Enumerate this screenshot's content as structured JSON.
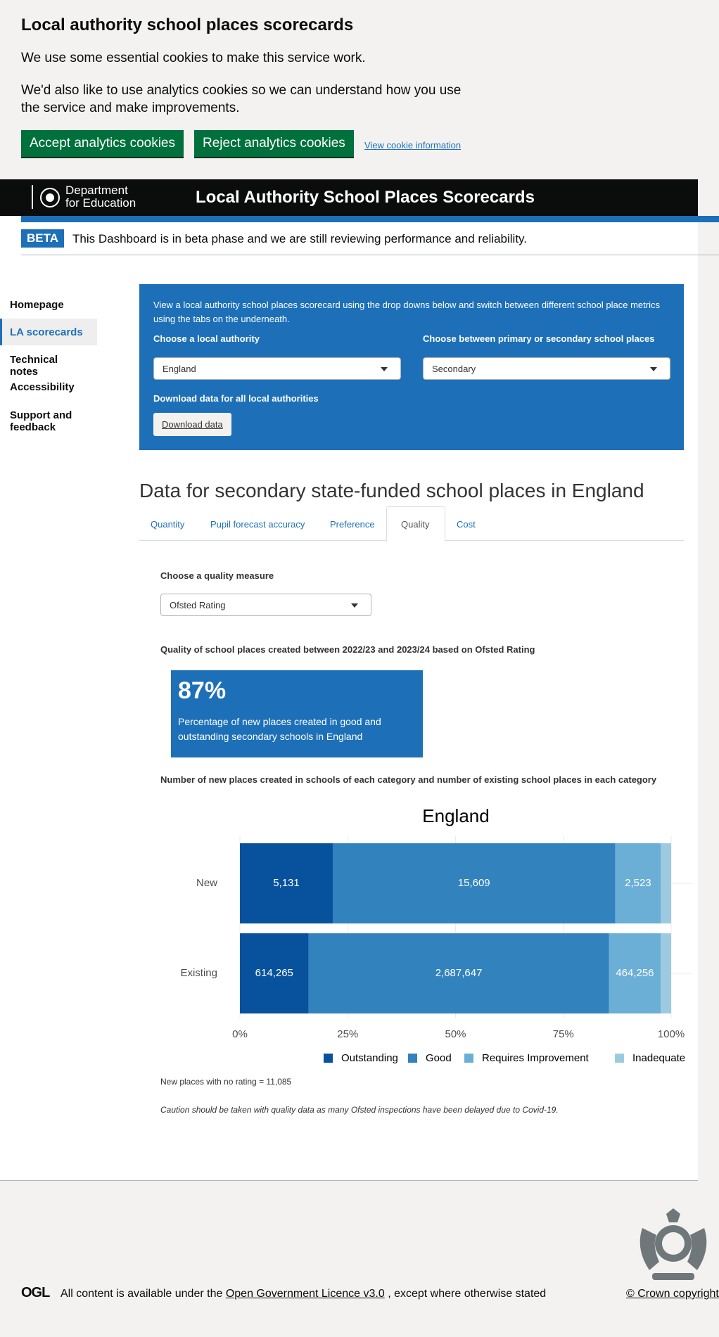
{
  "cookie_banner": {
    "title": "Local authority school places scorecards",
    "text1": "We use some essential cookies to make this service work.",
    "text2": "We'd also like to use analytics cookies so we can understand how you use the service and make improvements.",
    "accept": "Accept analytics cookies",
    "reject": "Reject analytics cookies",
    "link": "View cookie information"
  },
  "header": {
    "org_line1": "Department",
    "org_line2": "for Education",
    "title": "Local Authority School Places Scorecards"
  },
  "beta": {
    "tag": "BETA",
    "text": "This Dashboard is in beta phase and we are still reviewing performance and reliability."
  },
  "nav": [
    "Homepage",
    "LA scorecards",
    "Technical notes",
    "Accessibility",
    "Support and feedback"
  ],
  "panel": {
    "intro": "View a local authority school places scorecard using the drop downs below and switch between different school place metrics using the tabs on the underneath.",
    "la_label": "Choose a local authority",
    "la_value": "England",
    "phase_label": "Choose between primary or secondary school places",
    "phase_value": "Secondary",
    "download_label": "Download data for all local authorities",
    "download_button": "Download data"
  },
  "heading": "Data for secondary state-funded school places in England",
  "tabs": [
    "Quantity",
    "Pupil forecast accuracy",
    "Preference",
    "Quality",
    "Cost"
  ],
  "quality": {
    "measure_label": "Choose a quality measure",
    "measure_value": "Ofsted Rating",
    "section_title": "Quality of school places created between 2022/23 and 2023/24 based on Ofsted Rating",
    "kpi_value": "87%",
    "kpi_text": "Percentage of new places created in good and outstanding secondary schools in England",
    "chart_heading": "Number of new places created in schools of each category and number of existing school places in each category",
    "note": "New places with no rating = 11,085",
    "caution": "Caution should be taken with quality data as many Ofsted inspections have been delayed due to Covid-19."
  },
  "chart_data": {
    "type": "bar",
    "orientation": "horizontal",
    "stacked": "percent",
    "title": "England",
    "categories": [
      "New",
      "Existing"
    ],
    "series": [
      {
        "name": "Outstanding",
        "color": "#08519c",
        "values": [
          5131,
          614265
        ],
        "value_labels": [
          "5,131",
          "614,265"
        ]
      },
      {
        "name": "Good",
        "color": "#3182bd",
        "values": [
          15609,
          2687647
        ],
        "value_labels": [
          "15,609",
          "2,687,647"
        ]
      },
      {
        "name": "Requires Improvement",
        "color": "#6baed6",
        "values": [
          2523,
          464256
        ],
        "value_labels": [
          "2,523",
          "464,256"
        ]
      },
      {
        "name": "Inadequate",
        "color": "#9ecae1",
        "values": [
          570,
          92600
        ],
        "value_labels": [
          null,
          null
        ]
      }
    ],
    "xlim": [
      0,
      100
    ],
    "xticks": [
      {
        "value": 0,
        "label": "0%"
      },
      {
        "value": 25,
        "label": "25%"
      },
      {
        "value": 50,
        "label": "50%"
      },
      {
        "value": 75,
        "label": "75%"
      },
      {
        "value": 100,
        "label": "100%"
      }
    ],
    "grid": true,
    "legend": "bottom"
  },
  "footer": {
    "logo": "OGL",
    "licence_prefix": "All content is available under the",
    "licence_link": "Open Government Licence v3.0",
    "licence_suffix": ", except where otherwise stated",
    "copyright": "© Crown copyright"
  }
}
